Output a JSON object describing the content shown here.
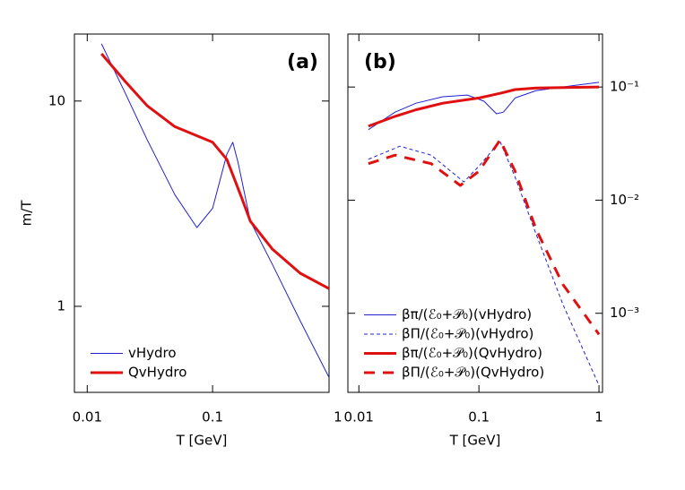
{
  "chart_data": [
    {
      "type": "line",
      "panel_label": "(a)",
      "xlabel": "T [GeV]",
      "ylabel": "m/T",
      "xscale": "log",
      "yscale": "log",
      "xlim": [
        0.0079,
        0.85
      ],
      "ylim": [
        0.381,
        21.2
      ],
      "xticks": [
        0.01,
        0.1,
        1
      ],
      "yticks": [
        1,
        10
      ],
      "legend": "lower left",
      "series": [
        {
          "name": "vHydro",
          "color": "#2020d0",
          "style": "solid",
          "width": 1,
          "x": [
            0.013,
            0.02,
            0.03,
            0.05,
            0.075,
            0.1,
            0.13,
            0.145,
            0.16,
            0.2,
            0.3,
            0.5,
            0.85
          ],
          "values": [
            19,
            11,
            6.5,
            3.5,
            2.42,
            3.0,
            5.5,
            6.3,
            5.0,
            2.6,
            1.6,
            0.85,
            0.45
          ]
        },
        {
          "name": "QvHydro",
          "color": "#e01010",
          "style": "solid",
          "width": 3,
          "x": [
            0.013,
            0.02,
            0.03,
            0.05,
            0.1,
            0.13,
            0.17,
            0.2,
            0.3,
            0.5,
            0.85
          ],
          "values": [
            17,
            12.5,
            9.5,
            7.5,
            6.3,
            5.2,
            3.4,
            2.6,
            1.9,
            1.45,
            1.22
          ]
        }
      ]
    },
    {
      "type": "line",
      "panel_label": "(b)",
      "xlabel": "T [GeV]",
      "xscale": "log",
      "yscale": "log",
      "xlim": [
        0.0081,
        1.07
      ],
      "ylim": [
        0.0002,
        0.294
      ],
      "xticks": [
        0.01,
        0.1,
        1
      ],
      "yticks": [
        {
          "value": 0.1,
          "label": "10⁻¹"
        },
        {
          "value": 0.01,
          "label": "10⁻²"
        },
        {
          "value": 0.001,
          "label": "10⁻³"
        }
      ],
      "yaxis_side": "right",
      "legend": "lower left",
      "series": [
        {
          "name": "βπ/(ℰ₀+𝒫₀)(vHydro)",
          "color": "#2020d0",
          "style": "solid",
          "width": 1,
          "x": [
            0.012,
            0.02,
            0.03,
            0.05,
            0.08,
            0.11,
            0.14,
            0.16,
            0.2,
            0.3,
            0.5,
            1
          ],
          "values": [
            0.042,
            0.06,
            0.072,
            0.082,
            0.085,
            0.075,
            0.058,
            0.06,
            0.08,
            0.093,
            0.1,
            0.11
          ]
        },
        {
          "name": "βΠ/(ℰ₀+𝒫₀)(vHydro)",
          "color": "#2020d0",
          "style": "dashed",
          "width": 1,
          "x": [
            0.012,
            0.022,
            0.04,
            0.075,
            0.1,
            0.15,
            0.2,
            0.3,
            0.5,
            1
          ],
          "values": [
            0.023,
            0.03,
            0.025,
            0.0145,
            0.02,
            0.033,
            0.016,
            0.005,
            0.0012,
            0.00023
          ]
        },
        {
          "name": "βπ/(ℰ₀+𝒫₀)(QvHydro)",
          "color": "#e01010",
          "style": "solid",
          "width": 3,
          "x": [
            0.012,
            0.02,
            0.03,
            0.05,
            0.1,
            0.15,
            0.2,
            0.3,
            1
          ],
          "values": [
            0.045,
            0.055,
            0.063,
            0.072,
            0.08,
            0.088,
            0.095,
            0.098,
            0.1
          ]
        },
        {
          "name": "βΠ/(ℰ₀+𝒫₀)(QvHydro)",
          "color": "#e01010",
          "style": "dashed",
          "width": 3,
          "x": [
            0.012,
            0.02,
            0.04,
            0.07,
            0.1,
            0.15,
            0.2,
            0.3,
            0.5,
            1
          ],
          "values": [
            0.021,
            0.025,
            0.021,
            0.0135,
            0.018,
            0.034,
            0.018,
            0.0055,
            0.0018,
            0.00065
          ]
        }
      ]
    }
  ]
}
